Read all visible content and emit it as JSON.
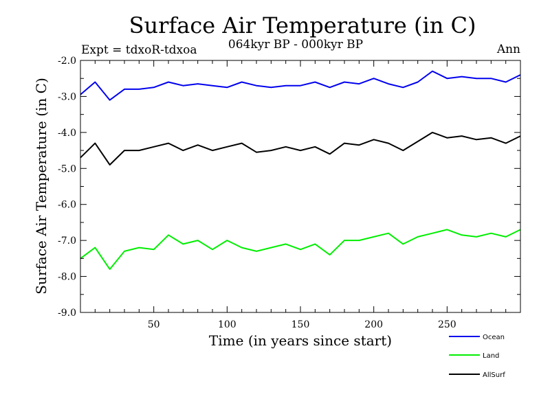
{
  "chart_data": {
    "type": "line",
    "title": "Surface Air Temperature (in C)",
    "subtitle": "064kyr BP - 000kyr BP",
    "left_label": "Expt = tdxoR-tdxoa",
    "right_label": "Ann",
    "xlabel": "Time (in years since start)",
    "ylabel": "Surface Air Temperature (in C)",
    "xlim": [
      0,
      300
    ],
    "ylim": [
      -9.0,
      -2.0
    ],
    "x_ticks": [
      50,
      100,
      150,
      200,
      250
    ],
    "y_ticks": [
      -9.0,
      -8.0,
      -7.0,
      -6.0,
      -5.0,
      -4.0,
      -3.0,
      -2.0
    ],
    "x_tick_labels": [
      "50",
      "100",
      "150",
      "200",
      "250"
    ],
    "y_tick_labels": [
      "-9.0",
      "-8.0",
      "-7.0",
      "-6.0",
      "-5.0",
      "-4.0",
      "-3.0",
      "-2.0"
    ],
    "grid": false,
    "legend_position": "bottom-right, below plot",
    "series": [
      {
        "name": "Ocean",
        "color": "#0000ee",
        "x": [
          0,
          10,
          20,
          30,
          40,
          50,
          60,
          70,
          80,
          90,
          100,
          110,
          120,
          130,
          140,
          150,
          160,
          170,
          180,
          190,
          200,
          210,
          220,
          230,
          240,
          250,
          260,
          270,
          280,
          290,
          300
        ],
        "values": [
          -2.95,
          -2.6,
          -3.1,
          -2.8,
          -2.8,
          -2.75,
          -2.6,
          -2.7,
          -2.65,
          -2.7,
          -2.75,
          -2.6,
          -2.7,
          -2.75,
          -2.7,
          -2.7,
          -2.6,
          -2.75,
          -2.6,
          -2.65,
          -2.5,
          -2.65,
          -2.75,
          -2.6,
          -2.3,
          -2.5,
          -2.45,
          -2.5,
          -2.5,
          -2.6,
          -2.4
        ]
      },
      {
        "name": "Land",
        "color": "#00ee00",
        "x": [
          0,
          10,
          20,
          30,
          40,
          50,
          60,
          70,
          80,
          90,
          100,
          110,
          120,
          130,
          140,
          150,
          160,
          170,
          180,
          190,
          200,
          210,
          220,
          230,
          240,
          250,
          260,
          270,
          280,
          290,
          300
        ],
        "values": [
          -7.5,
          -7.2,
          -7.8,
          -7.3,
          -7.2,
          -7.25,
          -6.85,
          -7.1,
          -7.0,
          -7.25,
          -7.0,
          -7.2,
          -7.3,
          -7.2,
          -7.1,
          -7.25,
          -7.1,
          -7.4,
          -7.0,
          -7.0,
          -6.9,
          -6.8,
          -7.1,
          -6.9,
          -6.8,
          -6.7,
          -6.85,
          -6.9,
          -6.8,
          -6.9,
          -6.7
        ]
      },
      {
        "name": "AllSurf",
        "color": "#000000",
        "x": [
          0,
          10,
          20,
          30,
          40,
          50,
          60,
          70,
          80,
          90,
          100,
          110,
          120,
          130,
          140,
          150,
          160,
          170,
          180,
          190,
          200,
          210,
          220,
          230,
          240,
          250,
          260,
          270,
          280,
          290,
          300
        ],
        "values": [
          -4.7,
          -4.3,
          -4.9,
          -4.5,
          -4.5,
          -4.4,
          -4.3,
          -4.5,
          -4.35,
          -4.5,
          -4.4,
          -4.3,
          -4.55,
          -4.5,
          -4.4,
          -4.5,
          -4.4,
          -4.6,
          -4.3,
          -4.35,
          -4.2,
          -4.3,
          -4.5,
          -4.25,
          -4.0,
          -4.15,
          -4.1,
          -4.2,
          -4.15,
          -4.3,
          -4.1
        ]
      }
    ]
  }
}
